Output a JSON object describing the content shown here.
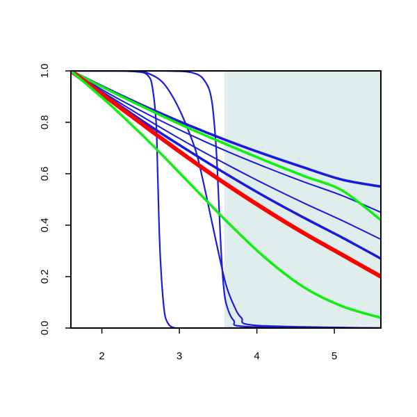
{
  "chart_data": {
    "type": "line",
    "title": "",
    "xlabel": "",
    "ylabel": "",
    "xlim": [
      1.6,
      5.6
    ],
    "ylim": [
      0.0,
      1.0
    ],
    "x_ticks": [
      2,
      3,
      4,
      5
    ],
    "x_tick_labels": [
      "2",
      "3",
      "4",
      "5"
    ],
    "y_ticks": [
      0.0,
      0.2,
      0.4,
      0.6,
      0.8,
      1.0
    ],
    "y_tick_labels": [
      "0.0",
      "0.2",
      "0.4",
      "0.6",
      "0.8",
      "1.0"
    ],
    "shaded_region": {
      "x_start": 3.58,
      "x_end": 5.6,
      "color": "#e0eded"
    },
    "grid": false,
    "legend": "none",
    "colors": {
      "blue": "#1a1adc",
      "green": "#11ee11",
      "red": "#ff0000",
      "axis": "#000000"
    },
    "series": [
      {
        "color": "blue",
        "weight": "thick",
        "x": [
          1.6,
          2.1,
          2.6,
          3.1,
          3.6,
          4.1,
          4.6,
          5.1,
          5.6
        ],
        "y": [
          1.0,
          0.926,
          0.856,
          0.791,
          0.731,
          0.676,
          0.625,
          0.577,
          0.55
        ]
      },
      {
        "color": "blue",
        "weight": "thin",
        "x": [
          1.6,
          2.1,
          2.6,
          3.1,
          3.6,
          4.1,
          4.6,
          5.1,
          5.6
        ],
        "y": [
          1.0,
          0.91,
          0.83,
          0.757,
          0.689,
          0.627,
          0.569,
          0.515,
          0.45
        ]
      },
      {
        "color": "blue",
        "weight": "thin",
        "x": [
          1.6,
          2.1,
          2.6,
          3.1,
          3.6,
          4.1,
          4.6,
          5.1,
          5.6
        ],
        "y": [
          1.0,
          0.901,
          0.808,
          0.72,
          0.638,
          0.56,
          0.487,
          0.418,
          0.345
        ]
      },
      {
        "color": "blue",
        "weight": "thick",
        "x": [
          1.6,
          2.1,
          2.6,
          3.1,
          3.6,
          4.1,
          4.6,
          5.1,
          5.6
        ],
        "y": [
          1.0,
          0.893,
          0.79,
          0.693,
          0.6,
          0.512,
          0.43,
          0.352,
          0.27
        ]
      },
      {
        "color": "blue",
        "weight": "medium",
        "x": [
          1.6,
          2.2,
          2.5,
          2.6,
          2.65,
          2.7,
          2.72,
          2.75,
          2.8,
          2.85,
          2.95,
          3.2,
          5.6
        ],
        "y": [
          1.0,
          1.0,
          0.995,
          0.98,
          0.94,
          0.8,
          0.6,
          0.3,
          0.08,
          0.02,
          0.0,
          0.0,
          0.0
        ]
      },
      {
        "color": "blue",
        "weight": "medium",
        "x": [
          1.6,
          2.4,
          2.6,
          2.8,
          3.0,
          3.2,
          3.3,
          3.4,
          3.5,
          3.6,
          3.7,
          3.8,
          4.0,
          5.6
        ],
        "y": [
          1.0,
          1.0,
          0.99,
          0.95,
          0.85,
          0.7,
          0.58,
          0.44,
          0.3,
          0.17,
          0.09,
          0.04,
          0.01,
          0.0
        ]
      },
      {
        "color": "blue",
        "weight": "medium",
        "x": [
          1.6,
          2.8,
          3.2,
          3.35,
          3.42,
          3.47,
          3.5,
          3.53,
          3.56,
          3.6,
          3.7,
          3.9,
          5.6
        ],
        "y": [
          1.0,
          1.0,
          0.99,
          0.95,
          0.88,
          0.72,
          0.55,
          0.35,
          0.2,
          0.1,
          0.03,
          0.005,
          0.0
        ]
      },
      {
        "color": "green",
        "weight": "thick",
        "x": [
          1.6,
          2.1,
          2.6,
          3.1,
          3.6,
          4.1,
          4.6,
          5.1,
          5.6
        ],
        "y": [
          1.0,
          0.923,
          0.85,
          0.78,
          0.715,
          0.652,
          0.592,
          0.535,
          0.42
        ]
      },
      {
        "color": "red",
        "weight": "extra",
        "x": [
          1.6,
          2.1,
          2.6,
          3.1,
          3.6,
          4.1,
          4.6,
          5.1,
          5.6
        ],
        "y": [
          1.0,
          0.888,
          0.775,
          0.665,
          0.56,
          0.462,
          0.37,
          0.285,
          0.2
        ]
      },
      {
        "color": "green",
        "weight": "thick",
        "x": [
          1.6,
          2.1,
          2.6,
          3.1,
          3.6,
          4.1,
          4.6,
          5.1,
          5.6
        ],
        "y": [
          1.0,
          0.87,
          0.727,
          0.573,
          0.418,
          0.275,
          0.16,
          0.085,
          0.04
        ]
      }
    ]
  }
}
